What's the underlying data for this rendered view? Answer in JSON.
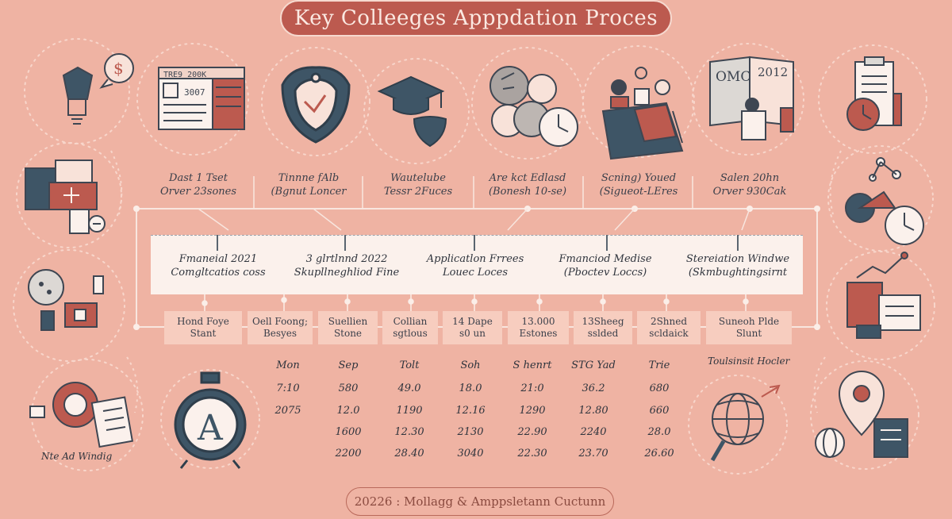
{
  "title": "Key Colleeges Apppdation Proces",
  "footer": "20226 : Mollagg & Amppsletann Cuctunn",
  "colors": {
    "background": "#efb3a3",
    "accent": "#bc5a4f",
    "navy": "#3e5566",
    "panel": "#fbf1ec",
    "box": "#f7cdbf"
  },
  "top_labels": [
    {
      "line1": "Dast 1 Tset",
      "line2": "Orver 23sones"
    },
    {
      "line1": "Tinnne fAlb",
      "line2": "(Bgnut Loncer"
    },
    {
      "line1": "Wautelube",
      "line2": "Tessr 2Fuces"
    },
    {
      "line1": "Are kct Edlasd",
      "line2": "(Bonesh 10-se)"
    },
    {
      "line1": "Scning) Youed",
      "line2": "(Sigueot-LEres"
    },
    {
      "line1": "Salen 20hn",
      "line2": "Orver 930Cak"
    }
  ],
  "middle_labels": [
    {
      "line1": "Fmaneial 2021",
      "line2": "Comgltcatios coss"
    },
    {
      "line1": "3 glrtlnnd 2022",
      "line2": "Skupllneghliod Fine"
    },
    {
      "line1": "Applicatlon Frrees",
      "line2": "Louec Loces"
    },
    {
      "line1": "Fmanciod Medise",
      "line2": "(Pboctev Loccs)"
    },
    {
      "line1": "Stereiation Windwe",
      "line2": "(Skmbughtingsirnt"
    }
  ],
  "boxes": [
    {
      "line1": "Hond Foye",
      "line2": "Stant"
    },
    {
      "line1": "Oell Foong;",
      "line2": "Besyes"
    },
    {
      "line1": "Suellien",
      "line2": "Stone"
    },
    {
      "line1": "Collian",
      "line2": "sgtlous"
    },
    {
      "line1": "14 Dape",
      "line2": "s0 un"
    },
    {
      "line1": "13.000",
      "line2": "Estones"
    },
    {
      "line1": "13Sheeg",
      "line2": "sslded"
    },
    {
      "line1": "2Shned",
      "line2": "scldaick"
    },
    {
      "line1": "Suneoh Plde",
      "line2": "Slunt"
    }
  ],
  "table": {
    "headers": [
      "Mon",
      "Sep",
      "Tolt",
      "Soh",
      "S henrt",
      "STG Yad",
      "Trie"
    ],
    "rows": [
      [
        "7:10",
        "580",
        "49.0",
        "18.0",
        "21:0",
        "36.2",
        "680"
      ],
      [
        "2075",
        "12.0",
        "1190",
        "12.16",
        "1290",
        "12.80",
        "660"
      ],
      [
        "",
        "1600",
        "12.30",
        "2130",
        "22.90",
        "2240",
        "28.0"
      ],
      [
        "",
        "2200",
        "28.40",
        "3040",
        "22.30",
        "23.70",
        "26.60"
      ]
    ]
  },
  "side_labels": {
    "bottom_left": "Nte Ad Windig",
    "right_table": "Toulsinsit Hocler"
  },
  "icon_texts": {
    "calendar_header": "TRE9 200K",
    "calendar_num": "3007",
    "book_left": "OMC",
    "book_right": "2012",
    "clock_letter": "A"
  }
}
